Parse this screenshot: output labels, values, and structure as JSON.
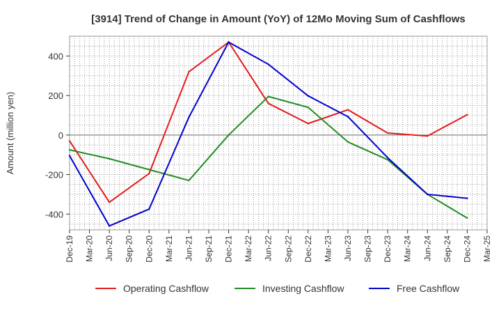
{
  "chart_data": {
    "type": "line",
    "title": "[3914]  Trend of Change in Amount (YoY) of 12Mo Moving Sum of Cashflows",
    "xlabel": "",
    "ylabel": "Amount (million yen)",
    "ylim": [
      -480,
      500
    ],
    "yticks": [
      -400,
      -200,
      0,
      200,
      400
    ],
    "grid": true,
    "legend_position": "bottom",
    "x_tick_labels": [
      "Dec-19",
      "Mar-20",
      "Jun-20",
      "Sep-20",
      "Dec-20",
      "Mar-21",
      "Jun-21",
      "Sep-21",
      "Dec-21",
      "Mar-22",
      "Jun-22",
      "Sep-22",
      "Dec-22",
      "Mar-23",
      "Jun-23",
      "Sep-23",
      "Dec-23",
      "Mar-24",
      "Jun-24",
      "Sep-24",
      "Dec-24",
      "Mar-25"
    ],
    "series": [
      {
        "name": "Operating Cashflow",
        "color": "#e31a1c",
        "points": [
          {
            "x": "Dec-19",
            "y": -30
          },
          {
            "x": "Jun-20",
            "y": -340
          },
          {
            "x": "Dec-20",
            "y": -195
          },
          {
            "x": "Jun-21",
            "y": 320
          },
          {
            "x": "Dec-21",
            "y": 470
          },
          {
            "x": "Jun-22",
            "y": 160
          },
          {
            "x": "Dec-22",
            "y": 58
          },
          {
            "x": "Jun-23",
            "y": 128
          },
          {
            "x": "Dec-23",
            "y": 10
          },
          {
            "x": "Jun-24",
            "y": -5
          },
          {
            "x": "Dec-24",
            "y": 103
          }
        ]
      },
      {
        "name": "Investing Cashflow",
        "color": "#228b22",
        "points": [
          {
            "x": "Dec-19",
            "y": -75
          },
          {
            "x": "Jun-20",
            "y": -120
          },
          {
            "x": "Dec-20",
            "y": -175
          },
          {
            "x": "Jun-21",
            "y": -230
          },
          {
            "x": "Dec-21",
            "y": 0
          },
          {
            "x": "Jun-22",
            "y": 195
          },
          {
            "x": "Dec-22",
            "y": 140
          },
          {
            "x": "Jun-23",
            "y": -35
          },
          {
            "x": "Dec-23",
            "y": -125
          },
          {
            "x": "Jun-24",
            "y": -300
          },
          {
            "x": "Dec-24",
            "y": -420
          }
        ]
      },
      {
        "name": "Free Cashflow",
        "color": "#0000cd",
        "points": [
          {
            "x": "Dec-19",
            "y": -105
          },
          {
            "x": "Jun-20",
            "y": -460
          },
          {
            "x": "Dec-20",
            "y": -375
          },
          {
            "x": "Jun-21",
            "y": 90
          },
          {
            "x": "Dec-21",
            "y": 470
          },
          {
            "x": "Jun-22",
            "y": 358
          },
          {
            "x": "Dec-22",
            "y": 198
          },
          {
            "x": "Jun-23",
            "y": 93
          },
          {
            "x": "Dec-23",
            "y": -115
          },
          {
            "x": "Jun-24",
            "y": -300
          },
          {
            "x": "Dec-24",
            "y": -320
          }
        ]
      }
    ]
  }
}
